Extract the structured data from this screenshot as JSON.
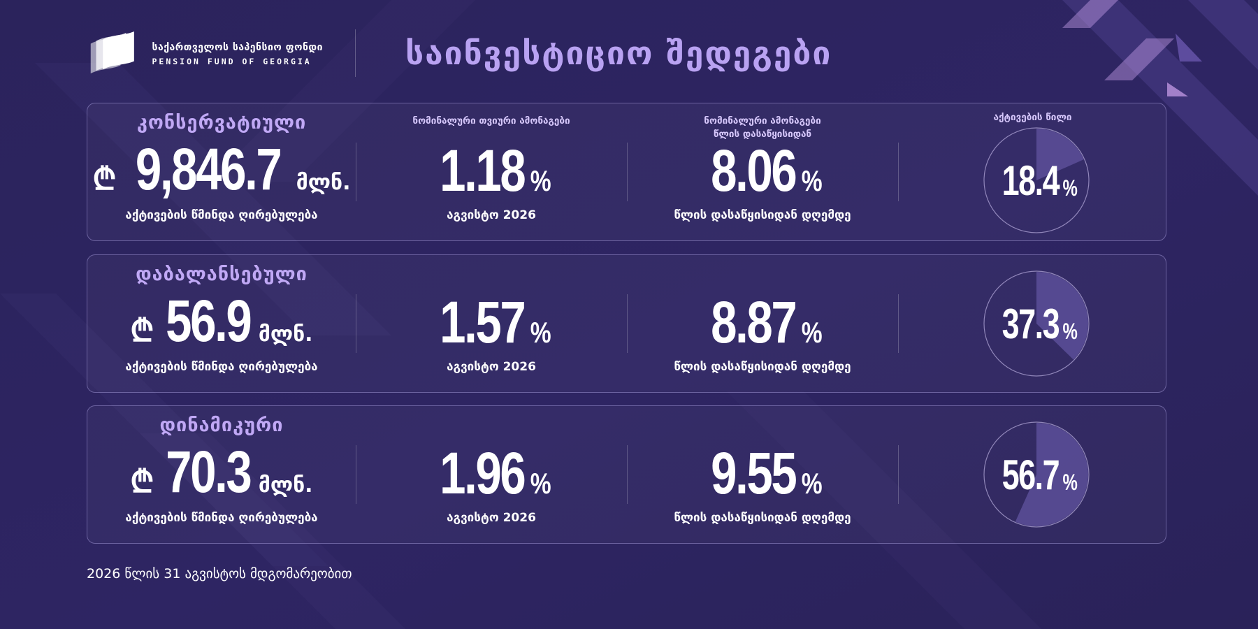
{
  "brand": {
    "name_ka": "საქართველოს საპენსიო ფონდი",
    "name_en": "PENSION FUND OF GEORGIA"
  },
  "page_title": "საინვესტიციო შედეგები",
  "headers": {
    "monthly_return": "ნომინალური თვიური ამონაგები",
    "ytd_return_line1": "ნომინალური ამონაგები",
    "ytd_return_line2": "წლის დასაწყისიდან",
    "asset_share": "აქტივების წილი"
  },
  "funds": [
    {
      "name": "კონსერვატიული",
      "currency_symbol": "₾",
      "net_asset_value": "9,846.7",
      "unit": "მლნ.",
      "net_asset_label": "აქტივების წმინდა ღირებულება",
      "monthly_return": "1.18",
      "monthly_period": "აგვისტო 2026",
      "ytd_return": "8.06",
      "ytd_period": "წლის დასაწყისიდან დღემდე",
      "asset_share": "18.4",
      "asset_share_fraction": 0.184
    },
    {
      "name": "დაბალანსებული",
      "currency_symbol": "₾",
      "net_asset_value": "56.9",
      "unit": "მლნ.",
      "net_asset_label": "აქტივების წმინდა ღირებულება",
      "monthly_return": "1.57",
      "monthly_period": "აგვისტო 2026",
      "ytd_return": "8.87",
      "ytd_period": "წლის დასაწყისიდან დღემდე",
      "asset_share": "37.3",
      "asset_share_fraction": 0.373
    },
    {
      "name": "დინამიკური",
      "currency_symbol": "₾",
      "net_asset_value": "70.3",
      "unit": "მლნ.",
      "net_asset_label": "აქტივების წმინდა ღირებულება",
      "monthly_return": "1.96",
      "monthly_period": "აგვისტო 2026",
      "ytd_return": "9.55",
      "ytd_period": "წლის დასაწყისიდან დღემდე",
      "asset_share": "56.7",
      "asset_share_fraction": 0.567
    }
  ],
  "percent_sign": "%",
  "footnote": "2026 წლის 31 აგვისტოს მდგომარეობით",
  "colors": {
    "background": "#2d2461",
    "accent": "#b9a2f2",
    "card_border": "#8e82c8",
    "pie_fill": "#5c4f99",
    "decor": "#c49be6"
  }
}
